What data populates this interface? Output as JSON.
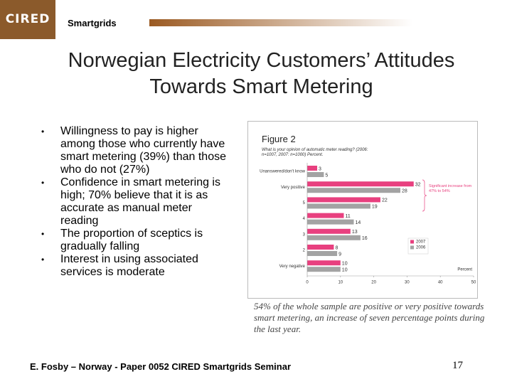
{
  "header": {
    "logo": "CIRED",
    "section": "Smartgrids"
  },
  "title": "Norwegian Electricity Customers’ Attitudes Towards Smart Metering",
  "bullets": [
    "Willingness to pay is higher among those who currently have smart metering (39%) than those who do not (27%)",
    "Confidence in smart metering is high; 70% believe that it is as accurate as manual meter reading",
    "The proportion of sceptics is gradually falling",
    "Interest in using associated services is moderate"
  ],
  "figure": {
    "chart_data": {
      "type": "hbar",
      "title": "Figure 2",
      "subtitle": "What is your opinion of automatic meter reading? (2006: n=1007, 2007: n=1000) Percent.",
      "categories": [
        "Unanswered/don't know",
        "Very positive",
        "5",
        "4",
        "3",
        "2",
        "Very negative"
      ],
      "series": [
        {
          "name": "2007",
          "color": "#e8407f",
          "values": [
            3,
            32,
            22,
            11,
            13,
            8,
            10
          ]
        },
        {
          "name": "2006",
          "color": "#a3a3a3",
          "values": [
            5,
            28,
            19,
            14,
            16,
            9,
            10
          ]
        }
      ],
      "xlim": [
        0,
        50
      ],
      "xticks": [
        0,
        10,
        20,
        30,
        40,
        50
      ],
      "x_label": "Percent",
      "annotation": "Significant increase from 47% to 54%",
      "grid": false,
      "legend": "lower right"
    },
    "caption": "54% of the whole sample are positive or very positive towards smart metering, an increase of seven percentage points during the last year."
  },
  "footer": {
    "text": "E. Fosby – Norway - Paper 0052 CIRED Smartgrids Seminar",
    "page": "17"
  }
}
